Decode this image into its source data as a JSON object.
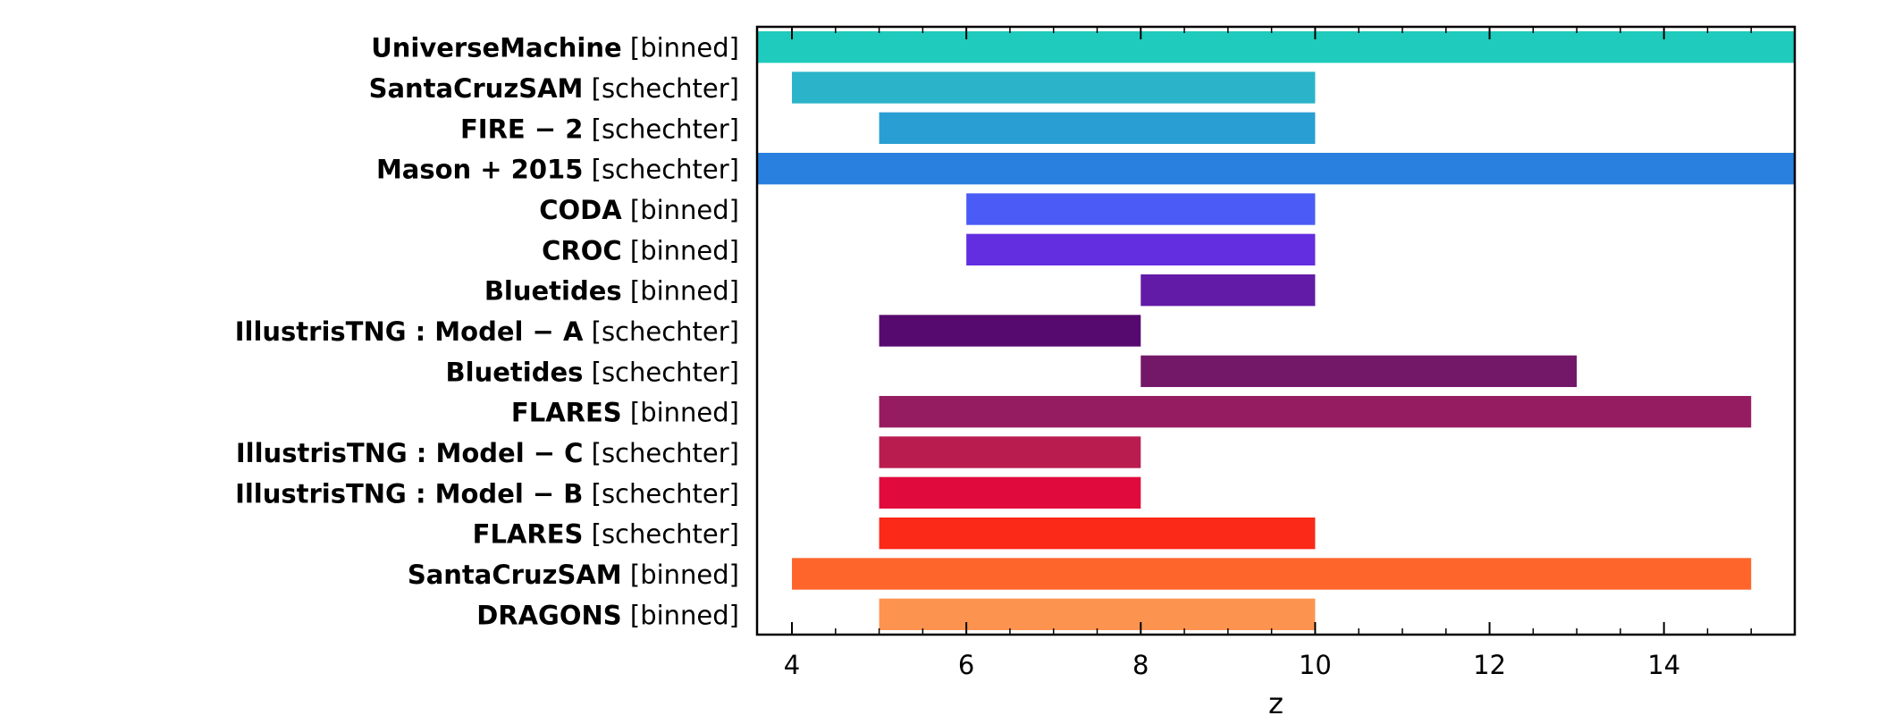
{
  "chart_data": {
    "type": "bar",
    "orientation": "horizontal-range",
    "xlabel": "z",
    "xlim": [
      3.6,
      15.5
    ],
    "xticks": [
      4,
      6,
      8,
      10,
      12,
      14
    ],
    "xtick_labels": [
      "4",
      "6",
      "8",
      "10",
      "12",
      "14"
    ],
    "grid": false,
    "legend": "none",
    "rows": [
      {
        "name": "UniverseMachine",
        "method": "[binned]",
        "start": 3.6,
        "end": 15.5,
        "color": "#1fcbbd"
      },
      {
        "name": "SantaCruzSAM",
        "method": "[schechter]",
        "start": 4,
        "end": 10,
        "color": "#2bb3c9"
      },
      {
        "name": "FIRE − 2",
        "method": "[schechter]",
        "start": 5,
        "end": 10,
        "color": "#299ed3"
      },
      {
        "name": "Mason + 2015",
        "method": "[schechter]",
        "start": 3.6,
        "end": 15.5,
        "color": "#2980df"
      },
      {
        "name": "CODA",
        "method": "[binned]",
        "start": 6,
        "end": 10,
        "color": "#4a5cf5"
      },
      {
        "name": "CROC",
        "method": "[binned]",
        "start": 6,
        "end": 10,
        "color": "#632ee0"
      },
      {
        "name": "Bluetides",
        "method": "[binned]",
        "start": 8,
        "end": 10,
        "color": "#621ba6"
      },
      {
        "name": "IllustrisTNG : Model − A",
        "method": "[schechter]",
        "start": 5,
        "end": 8,
        "color": "#560a6f"
      },
      {
        "name": "Bluetides",
        "method": "[schechter]",
        "start": 8,
        "end": 13,
        "color": "#731868"
      },
      {
        "name": "FLARES",
        "method": "[binned]",
        "start": 5,
        "end": 15,
        "color": "#961c61"
      },
      {
        "name": "IllustrisTNG : Model − C",
        "method": "[schechter]",
        "start": 5,
        "end": 8,
        "color": "#b91d50"
      },
      {
        "name": "IllustrisTNG : Model − B",
        "method": "[schechter]",
        "start": 5,
        "end": 8,
        "color": "#e10a3d"
      },
      {
        "name": "FLARES",
        "method": "[schechter]",
        "start": 5,
        "end": 10,
        "color": "#fa2918"
      },
      {
        "name": "SantaCruzSAM",
        "method": "[binned]",
        "start": 4,
        "end": 15,
        "color": "#fd652b"
      },
      {
        "name": "DRAGONS",
        "method": "[binned]",
        "start": 5,
        "end": 10,
        "color": "#fc9450"
      }
    ]
  }
}
